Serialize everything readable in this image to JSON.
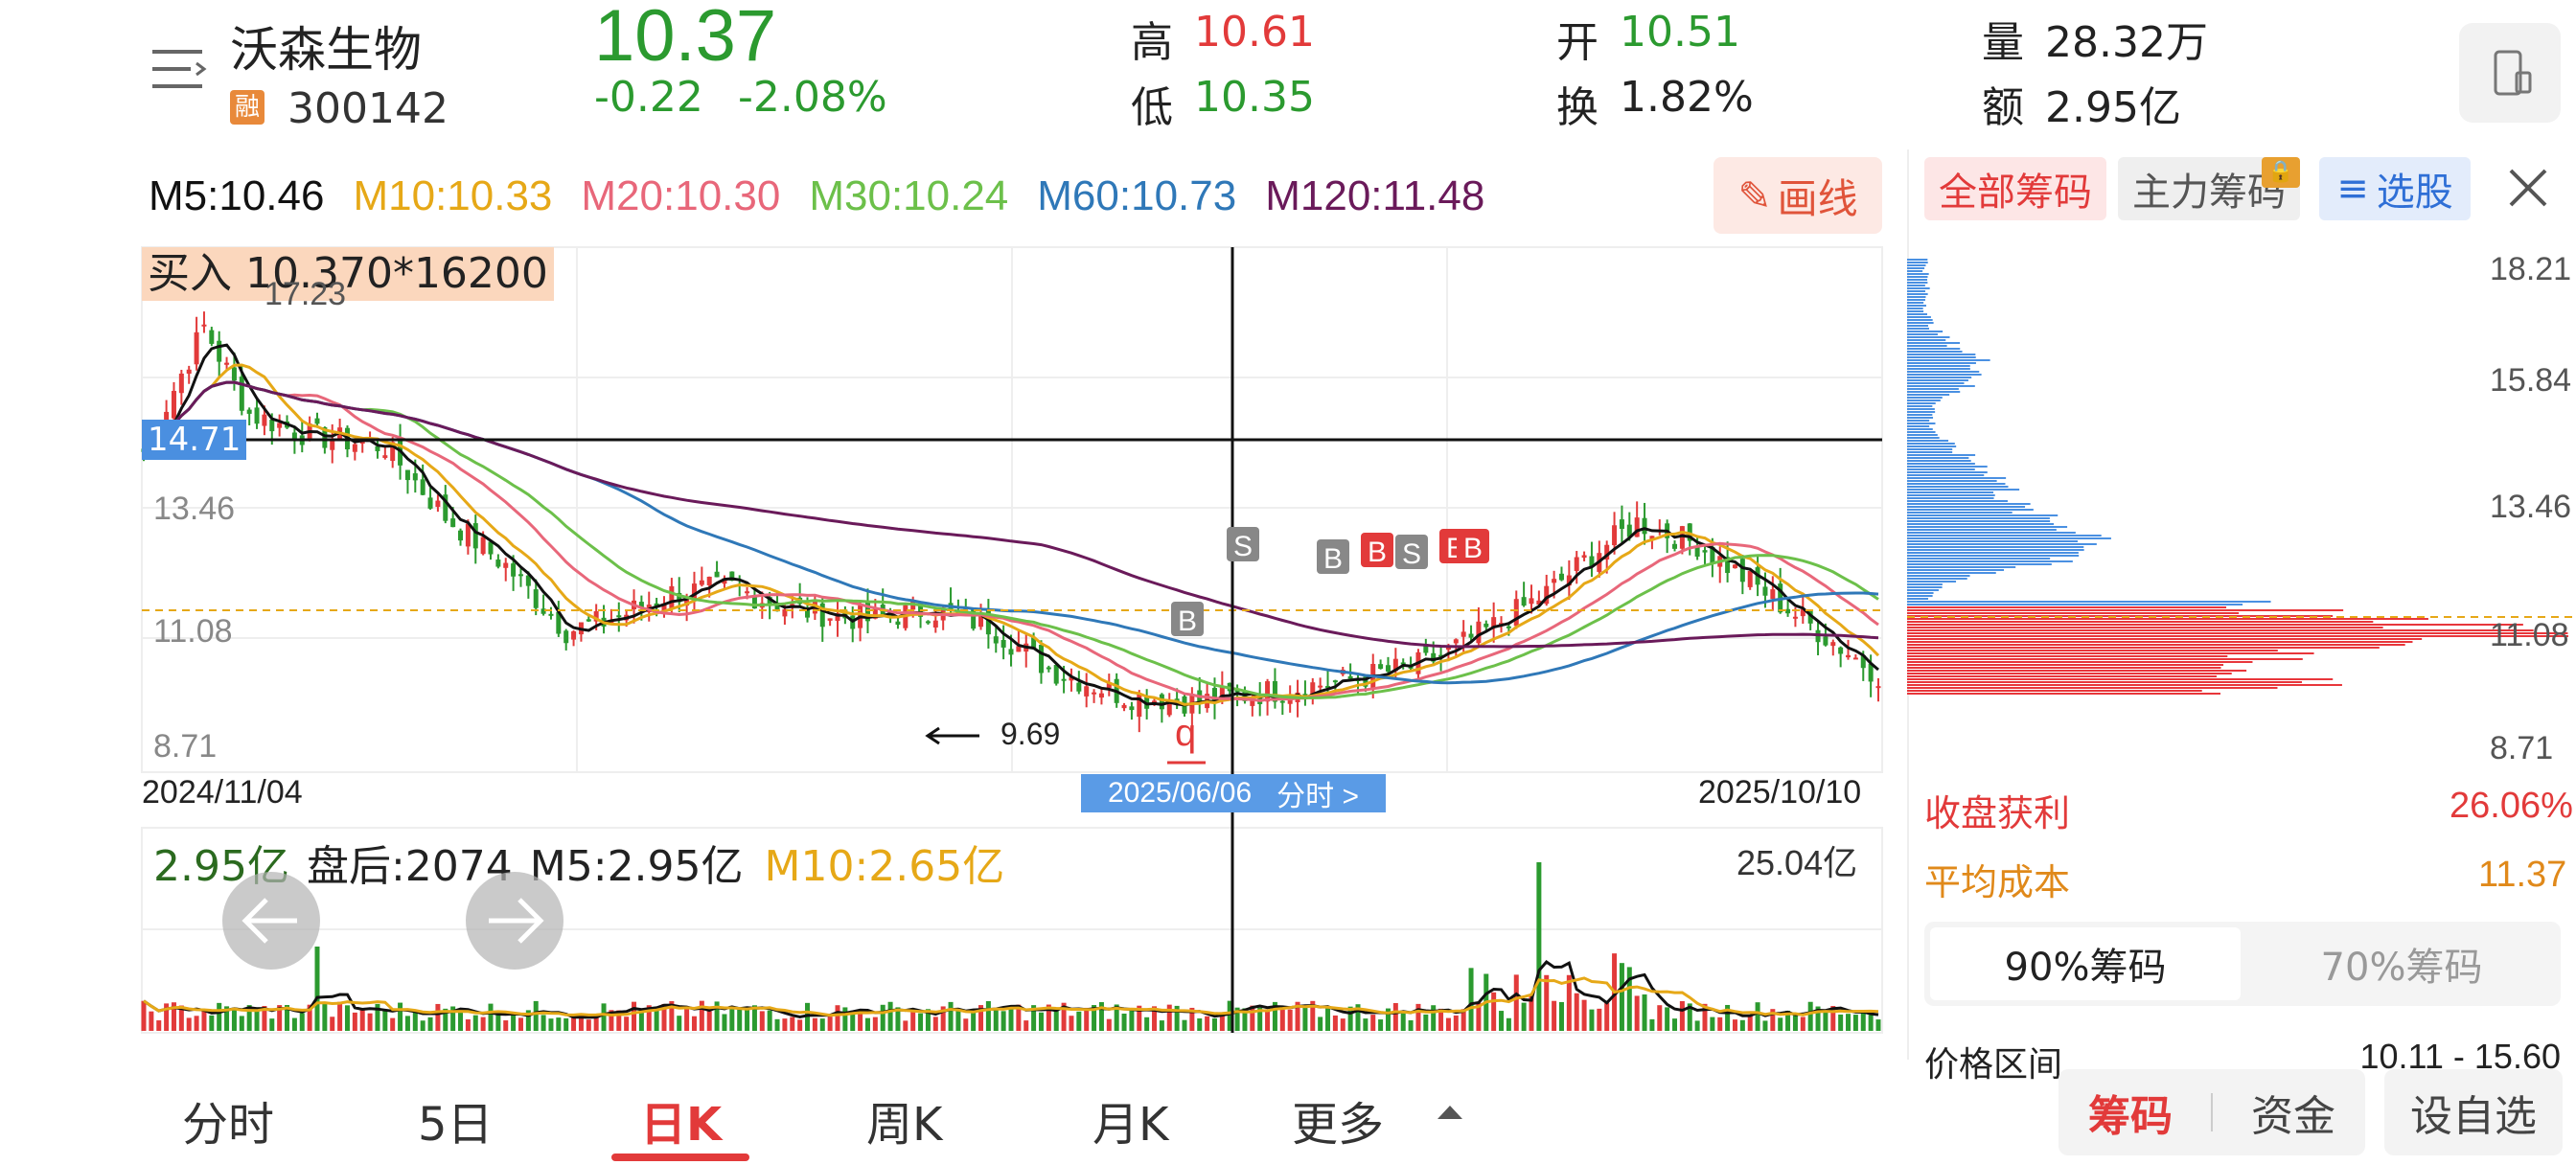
{
  "stock": {
    "name": "沃森生物",
    "margin_badge": "融",
    "code": "300142",
    "price": "10.37",
    "change": "-0.22",
    "change_pct": "-2.08%",
    "high_label": "高",
    "high": "10.61",
    "low_label": "低",
    "low": "10.35",
    "open_label": "开",
    "open": "10.51",
    "turnover_label": "换",
    "turnover": "1.82%",
    "volume_label": "量",
    "volume": "28.32万",
    "amount_label": "额",
    "amount": "2.95亿"
  },
  "ma": {
    "m5": "M5:10.46",
    "m10": "M10:10.33",
    "m20": "M20:10.30",
    "m30": "M30:10.24",
    "m60": "M60:10.73",
    "m120": "M120:11.48"
  },
  "draw_button": "画线",
  "chart": {
    "trade_note": "买入 10.370*16200",
    "high_mark": "17.23",
    "crosshair_price": "14.71",
    "y_labels": [
      "13.46",
      "11.08",
      "8.71"
    ],
    "low_mark": "9.69",
    "date_start": "2024/11/04",
    "date_end": "2025/10/10",
    "crosshair_date": "2025/06/06",
    "intraday_link": "分时 >"
  },
  "volume_panel": {
    "vol": "2.95亿",
    "after_hours": "盘后:2074",
    "m5": "M5:2.95亿",
    "m10": "M10:2.65亿",
    "max": "25.04亿"
  },
  "chips": {
    "tab_all": "全部筹码",
    "tab_main": "主力筹码",
    "tab_pick": "选股",
    "y_labels": [
      "18.21",
      "15.84",
      "13.46",
      "11.08",
      "8.71"
    ],
    "profit_label": "收盘获利",
    "profit_value": "26.06%",
    "avg_cost_label": "平均成本",
    "avg_cost_value": "11.37",
    "seg_90": "90%筹码",
    "seg_70": "70%筹码",
    "range_label": "价格区间",
    "range_value": "10.11 - 15.60"
  },
  "tabs": [
    "分时",
    "5日",
    "日K",
    "周K",
    "月K",
    "更多"
  ],
  "bottom_buttons": [
    "筹码",
    "资金",
    "设自选"
  ],
  "colors": {
    "up": "#e23a3a",
    "down": "#2b9a2f",
    "m5": "#111111",
    "m10": "#e6a817",
    "m20": "#e8677a",
    "m30": "#6cc04a",
    "m60": "#2f78b8",
    "m120": "#6a1a5a",
    "chip_blue": "#4a90e2",
    "chip_red": "#e8363b"
  }
}
